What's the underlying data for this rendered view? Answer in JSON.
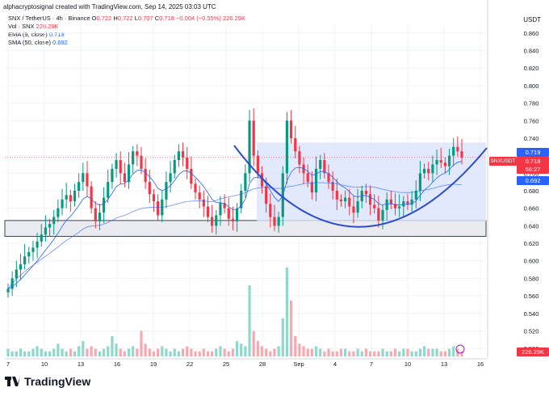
{
  "header": {
    "attribution": "alphacryptosignal created with TradingView.com, Sep 14, 2025 03:03 UTC",
    "symbol": "SNX / TetherUS · 4h · Binance",
    "ohlc": {
      "o_label": "O",
      "o": "0.722",
      "h_label": "H",
      "h": "0.722",
      "l_label": "L",
      "l": "0.707",
      "c_label": "C",
      "c": "0.718",
      "change": "−0.004 (−0.55%)",
      "vol": "226.29K"
    },
    "vol_label": "Vol · SNX",
    "vol_value": "226.29K",
    "ema_label": "EMA (9, close)",
    "ema_value": "0.719",
    "sma_label": "SMA (50, close)",
    "sma_value": "0.692",
    "unit": "USDT"
  },
  "tags": {
    "ema_tag": "0.719",
    "ticker": "SNXUSDT",
    "price": "0.718",
    "countdown": "56:27",
    "sma_tag": "0.692",
    "volume": "226.29K"
  },
  "brand": {
    "name": "TradingView"
  },
  "colors": {
    "up": "#089981",
    "down": "#f23645",
    "ema": "#2962ff",
    "sma": "#2962ff",
    "bowl": "#2a4dd0",
    "zone_fill": "#e9ebf0",
    "box_fill": "#dbe3fb"
  },
  "chart_data": {
    "type": "candlestick",
    "y_ticks": [
      "0.860",
      "0.840",
      "0.820",
      "0.800",
      "0.780",
      "0.760",
      "0.740",
      "0.720",
      "0.700",
      "0.680",
      "0.660",
      "0.640",
      "0.620",
      "0.600",
      "0.580",
      "0.560",
      "0.540",
      "0.520",
      "0.500"
    ],
    "x_ticks": [
      "7",
      "10",
      "13",
      "16",
      "19",
      "22",
      "25",
      "28",
      "Sep",
      "4",
      "7",
      "10",
      "13",
      "16"
    ],
    "ylim": [
      0.49,
      0.87
    ],
    "support_zone": [
      0.628,
      0.646
    ],
    "resistance_box": [
      0.645,
      0.735
    ],
    "price_line": 0.718,
    "close_series": [
      0.568,
      0.58,
      0.59,
      0.596,
      0.605,
      0.61,
      0.615,
      0.622,
      0.63,
      0.638,
      0.642,
      0.65,
      0.66,
      0.67,
      0.675,
      0.668,
      0.68,
      0.69,
      0.7,
      0.685,
      0.66,
      0.645,
      0.655,
      0.672,
      0.69,
      0.705,
      0.715,
      0.7,
      0.69,
      0.71,
      0.725,
      0.72,
      0.705,
      0.69,
      0.676,
      0.668,
      0.652,
      0.67,
      0.69,
      0.7,
      0.715,
      0.725,
      0.718,
      0.705,
      0.688,
      0.678,
      0.67,
      0.662,
      0.65,
      0.64,
      0.652,
      0.666,
      0.66,
      0.648,
      0.645,
      0.66,
      0.68,
      0.7,
      0.76,
      0.72,
      0.7,
      0.685,
      0.665,
      0.65,
      0.64,
      0.65,
      0.7,
      0.76,
      0.74,
      0.725,
      0.71,
      0.7,
      0.69,
      0.678,
      0.705,
      0.715,
      0.7,
      0.69,
      0.68,
      0.67,
      0.668,
      0.672,
      0.662,
      0.655,
      0.668,
      0.68,
      0.676,
      0.664,
      0.66,
      0.646,
      0.658,
      0.67,
      0.665,
      0.66,
      0.662,
      0.668,
      0.664,
      0.67,
      0.68,
      0.7,
      0.705,
      0.7,
      0.71,
      0.715,
      0.712,
      0.708,
      0.72,
      0.73,
      0.725,
      0.718
    ],
    "volume_series": [
      3,
      2,
      2,
      3,
      2,
      2,
      3,
      4,
      3,
      2,
      2,
      3,
      5,
      3,
      2,
      3,
      2,
      4,
      6,
      3,
      4,
      3,
      2,
      3,
      4,
      8,
      5,
      3,
      2,
      3,
      4,
      3,
      10,
      5,
      3,
      2,
      3,
      4,
      3,
      2,
      3,
      2,
      3,
      4,
      3,
      2,
      2,
      3,
      2,
      2,
      3,
      4,
      3,
      2,
      3,
      6,
      5,
      4,
      28,
      10,
      6,
      4,
      3,
      2,
      3,
      4,
      15,
      35,
      22,
      8,
      5,
      4,
      3,
      3,
      4,
      3,
      2,
      3,
      2,
      2,
      3,
      3,
      2,
      2,
      3,
      2,
      3,
      2,
      2,
      2,
      3,
      2,
      2,
      3,
      2,
      3,
      3,
      2,
      2,
      3,
      4,
      3,
      3,
      3,
      2,
      2,
      3,
      4,
      3,
      2
    ]
  }
}
